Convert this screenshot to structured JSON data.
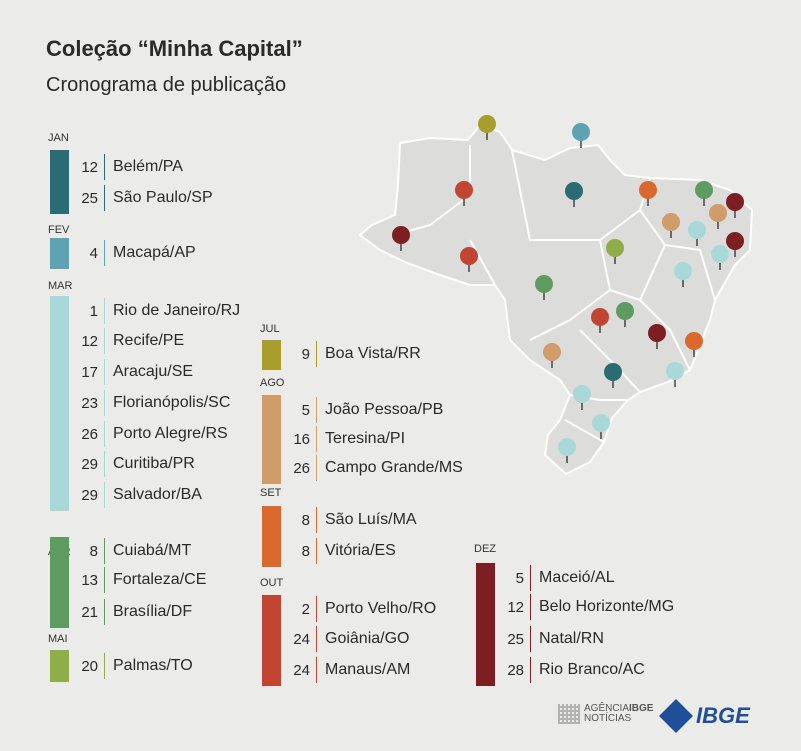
{
  "header": {
    "title": "Coleção “Minha Capital”",
    "subtitle": "Cronograma de publicação"
  },
  "colors": {
    "JAN": "#2b6b73",
    "FEV": "#5fa3b3",
    "MAR": "#a8d8d8",
    "ABR": "#5e9b60",
    "MAI": "#8fae4a",
    "JUL": "#a89d2d",
    "AGO": "#cf9c6a",
    "SET": "#d9692e",
    "OUT": "#c24433",
    "DEZ": "#7d1f22"
  },
  "months": [
    {
      "label": "JAN",
      "entries": [
        {
          "day": "12",
          "city": "Belém/PA"
        },
        {
          "day": "25",
          "city": "São Paulo/SP"
        }
      ]
    },
    {
      "label": "FEV",
      "entries": [
        {
          "day": "4",
          "city": "Macapá/AP"
        }
      ]
    },
    {
      "label": "MAR",
      "entries": [
        {
          "day": "1",
          "city": "Rio de Janeiro/RJ"
        },
        {
          "day": "12",
          "city": "Recife/PE"
        },
        {
          "day": "17",
          "city": "Aracaju/SE"
        },
        {
          "day": "23",
          "city": "Florianópolis/SC"
        },
        {
          "day": "26",
          "city": "Porto Alegre/RS"
        },
        {
          "day": "29",
          "city": "Curitiba/PR"
        },
        {
          "day": "29",
          "city": "Salvador/BA"
        }
      ]
    },
    {
      "label": "ABR",
      "entries": [
        {
          "day": "8",
          "city": "Cuiabá/MT"
        },
        {
          "day": "13",
          "city": "Fortaleza/CE"
        },
        {
          "day": "21",
          "city": "Brasília/DF"
        }
      ]
    },
    {
      "label": "MAI",
      "entries": [
        {
          "day": "20",
          "city": "Palmas/TO"
        }
      ]
    },
    {
      "label": "JUL",
      "entries": [
        {
          "day": "9",
          "city": "Boa Vista/RR"
        }
      ]
    },
    {
      "label": "AGO",
      "entries": [
        {
          "day": "5",
          "city": "João Pessoa/PB"
        },
        {
          "day": "16",
          "city": "Teresina/PI"
        },
        {
          "day": "26",
          "city": "Campo Grande/MS"
        }
      ]
    },
    {
      "label": "SET",
      "entries": [
        {
          "day": "8",
          "city": "São Luís/MA"
        },
        {
          "day": "8",
          "city": "Vitória/ES"
        }
      ]
    },
    {
      "label": "OUT",
      "entries": [
        {
          "day": "2",
          "city": "Porto Velho/RO"
        },
        {
          "day": "24",
          "city": "Goiânia/GO"
        },
        {
          "day": "24",
          "city": "Manaus/AM"
        }
      ]
    },
    {
      "label": "DEZ",
      "entries": [
        {
          "day": "5",
          "city": "Maceió/AL"
        },
        {
          "day": "12",
          "city": "Belo Horizonte/MG"
        },
        {
          "day": "25",
          "city": "Natal/RN"
        },
        {
          "day": "28",
          "city": "Rio Branco/AC"
        }
      ]
    }
  ],
  "map_pins": [
    "Boa Vista/RR",
    "Macapá/AP",
    "Manaus/AM",
    "Belém/PA",
    "São Luís/MA",
    "Fortaleza/CE",
    "Teresina/PI",
    "Natal/RN",
    "João Pessoa/PB",
    "Recife/PE",
    "Maceió/AL",
    "Aracaju/SE",
    "Rio Branco/AC",
    "Porto Velho/RO",
    "Palmas/TO",
    "Salvador/BA",
    "Cuiabá/MT",
    "Brasília/DF",
    "Goiânia/GO",
    "Belo Horizonte/MG",
    "Vitória/ES",
    "Campo Grande/MS",
    "São Paulo/SP",
    "Rio de Janeiro/RJ",
    "Curitiba/PR",
    "Florianópolis/SC",
    "Porto Alegre/RS"
  ],
  "footer": {
    "agencia_line1": "AGÊNCIA",
    "agencia_brand": "IBGE",
    "agencia_line2": "NOTÍCIAS",
    "ibge": "IBGE"
  }
}
